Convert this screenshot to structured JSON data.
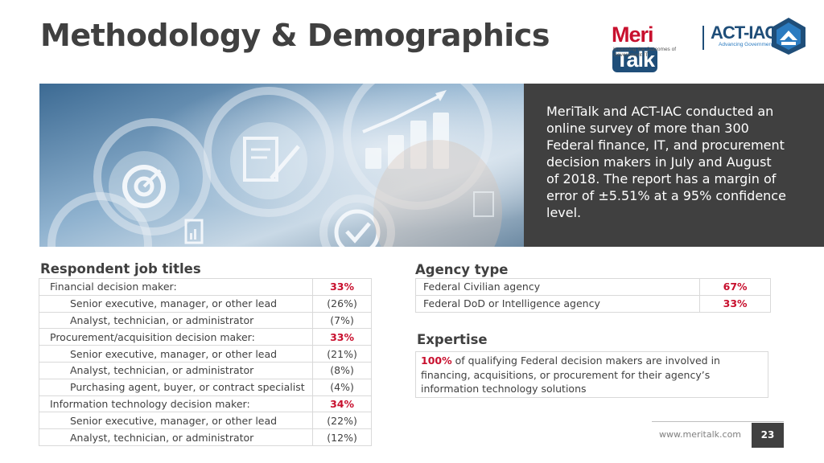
{
  "header": {
    "title": "Methodology & Demographics",
    "logos": {
      "meritalk": {
        "word_a": "Meri",
        "word_b": "Talk",
        "tagline": "Improving the Outcomes of Government IT"
      },
      "actiac": {
        "word": "ACT-IAC",
        "tagline": "Advancing Government"
      }
    }
  },
  "hero": {
    "image_icons": [
      "target-icon",
      "document-signature-icon",
      "bar-chart-growth-icon",
      "checkmark-icon",
      "clipboard-chart-icon",
      "gear-icon"
    ],
    "description": "MeriTalk and ACT-IAC conducted an online survey of more than 300 Federal finance, IT, and procurement decision makers in July and August of 2018.  The report has a margin of error of ±5.51% at a 95% confidence level."
  },
  "respondents": {
    "heading": "Respondent job titles",
    "rows": [
      {
        "label": "Financial decision maker:",
        "value": "33%",
        "emphasis": true,
        "indent": false
      },
      {
        "label": "Senior executive, manager, or other lead",
        "value": "(26%)",
        "emphasis": false,
        "indent": true
      },
      {
        "label": "Analyst, technician, or administrator",
        "value": "(7%)",
        "emphasis": false,
        "indent": true
      },
      {
        "label": "Procurement/acquisition decision maker:",
        "value": "33%",
        "emphasis": true,
        "indent": false
      },
      {
        "label": "Senior executive, manager, or other lead",
        "value": "(21%)",
        "emphasis": false,
        "indent": true
      },
      {
        "label": "Analyst, technician, or administrator",
        "value": "(8%)",
        "emphasis": false,
        "indent": true
      },
      {
        "label": "Purchasing agent, buyer, or contract specialist",
        "value": "(4%)",
        "emphasis": false,
        "indent": true
      },
      {
        "label": "Information technology decision maker:",
        "value": "34%",
        "emphasis": true,
        "indent": false
      },
      {
        "label": "Senior executive, manager, or other lead",
        "value": "(22%)",
        "emphasis": false,
        "indent": true
      },
      {
        "label": "Analyst, technician, or administrator",
        "value": "(12%)",
        "emphasis": false,
        "indent": true
      }
    ]
  },
  "agency": {
    "heading": "Agency type",
    "rows": [
      {
        "label": "Federal Civilian agency",
        "value": "67%"
      },
      {
        "label": "Federal DoD or Intelligence agency",
        "value": "33%"
      }
    ]
  },
  "expertise": {
    "heading": "Expertise",
    "highlight": "100%",
    "text": " of qualifying Federal decision makers are involved in financing, acquisitions, or procurement for their agency’s information technology solutions"
  },
  "footer": {
    "url": "www.meritalk.com",
    "page": "23"
  },
  "colors": {
    "accent": "#c8102e",
    "dark": "#404040",
    "brand_blue": "#1f4e79"
  }
}
